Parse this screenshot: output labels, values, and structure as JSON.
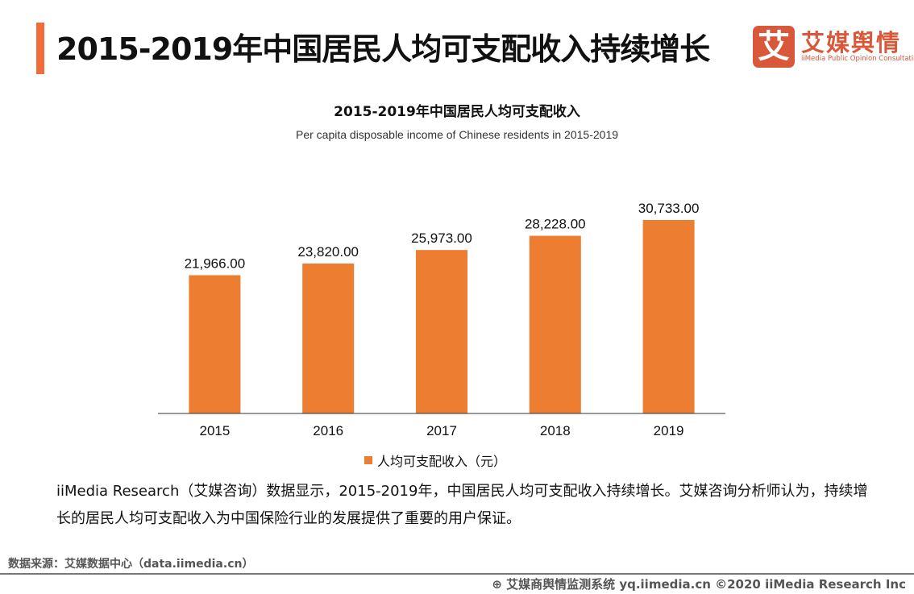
{
  "header": {
    "title": "2015-2019年中国居民人均可支配收入持续增长",
    "logo_mark": "艾",
    "logo_cn": "艾媒舆情",
    "logo_en": "iiMedia Public Opinion Consultation"
  },
  "chart_data": {
    "type": "bar",
    "title": "2015-2019年中国居民人均可支配收入",
    "subtitle": "Per capita disposable income of Chinese residents in 2015-2019",
    "categories": [
      "2015",
      "2016",
      "2017",
      "2018",
      "2019"
    ],
    "series": [
      {
        "name": "人均可支配收入（元）",
        "values": [
          21966,
          23820,
          25973,
          28228,
          30733
        ]
      }
    ],
    "data_labels": [
      "21,966.00",
      "23,820.00",
      "25,973.00",
      "28,228.00",
      "30,733.00"
    ],
    "ylim": [
      0,
      30733
    ],
    "grid": false,
    "legend": "bottom",
    "color": "#ed7d31"
  },
  "body": "iiMedia Research（艾媒咨询）数据显示，2015-2019年，中国居民人均可支配收入持续增长。艾媒咨询分析师认为，持续增长的居民人均可支配收入为中国保险行业的发展提供了重要的用户保证。",
  "source": "数据来源：艾媒数据中心（data.iimedia.cn）",
  "footer": "艾媒商舆情监测系统 yq.iimedia.cn  ©2020  iiMedia Research  Inc"
}
